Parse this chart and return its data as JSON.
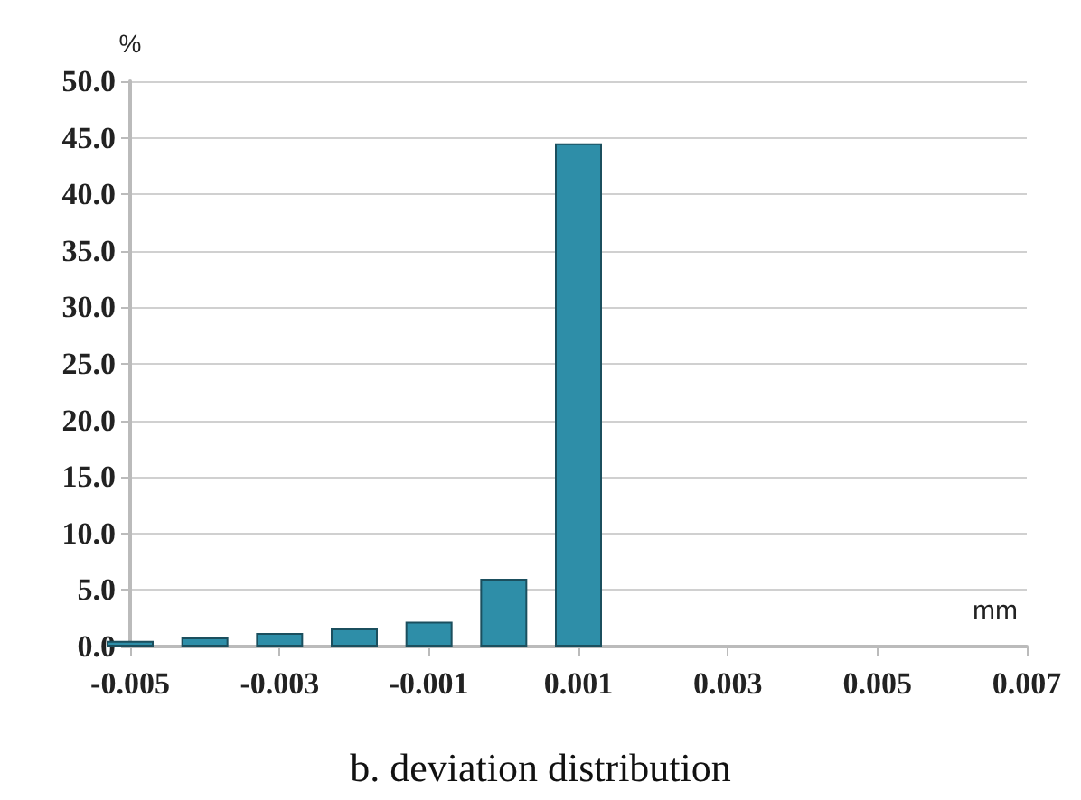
{
  "chart_data": {
    "type": "bar",
    "title": "b. deviation distribution",
    "xlabel": "mm",
    "ylabel": "%",
    "x": [
      -0.005,
      -0.004,
      -0.003,
      -0.002,
      -0.001,
      0,
      0.001
    ],
    "values": [
      0.5,
      0.8,
      1.2,
      1.6,
      2.2,
      6.0,
      44.5
    ],
    "color": "#2e8ea8",
    "xlim": [
      -0.005,
      0.007
    ],
    "xticks": [
      -0.005,
      -0.003,
      -0.001,
      0.001,
      0.003,
      0.005,
      0.007
    ],
    "ylim": [
      0,
      50
    ],
    "yticks": [
      {
        "value": 0,
        "label": "0.0"
      },
      {
        "value": 5,
        "label": "5.0"
      },
      {
        "value": 10,
        "label": "10.0"
      },
      {
        "value": 15,
        "label": "15.0"
      },
      {
        "value": 20,
        "label": "20.0"
      },
      {
        "value": 25,
        "label": "25.0"
      },
      {
        "value": 30,
        "label": "30.0"
      },
      {
        "value": 35,
        "label": "35.0"
      },
      {
        "value": 40,
        "label": "40.0"
      },
      {
        "value": 45,
        "label": "45.0"
      },
      {
        "value": 50,
        "label": "50.0"
      }
    ],
    "grid": "y"
  }
}
